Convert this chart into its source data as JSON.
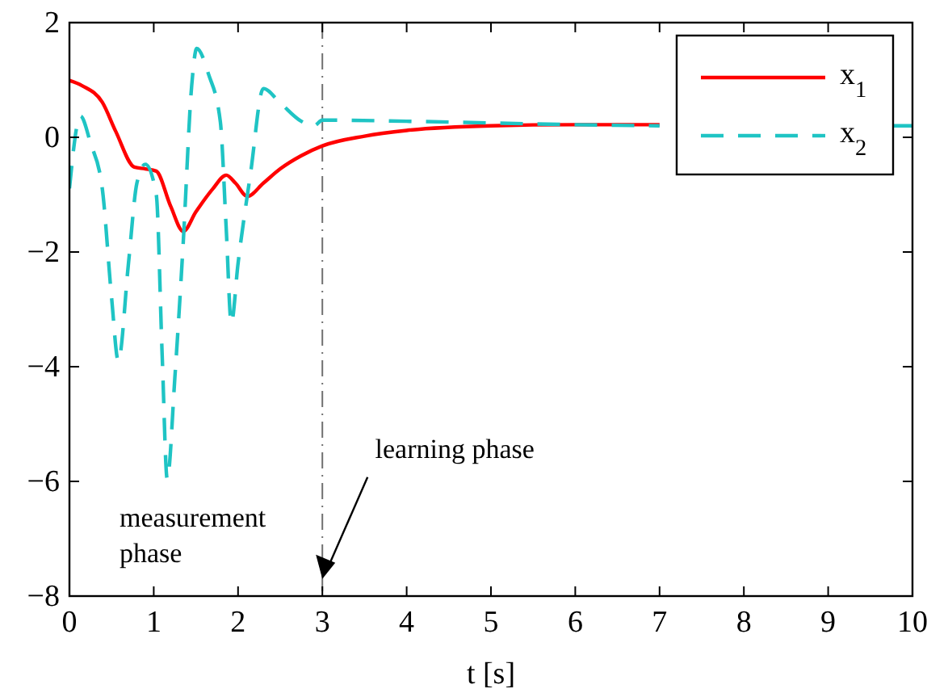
{
  "chart_data": {
    "type": "line",
    "xlabel": "t [s]",
    "xlim": [
      0,
      10
    ],
    "ylim": [
      -8,
      2
    ],
    "xticks": [
      0,
      1,
      2,
      3,
      4,
      5,
      6,
      7,
      8,
      9,
      10
    ],
    "yticks": [
      -8,
      -6,
      -4,
      -2,
      0,
      2
    ],
    "grid": false,
    "legend": "top right",
    "series": [
      {
        "name": "x$_{1}$",
        "color": "#ff0000",
        "line_style": "solid",
        "x": [
          0,
          0.15,
          0.39,
          0.55,
          0.77,
          0.9,
          1.03,
          1.2,
          1.35,
          1.5,
          1.7,
          1.86,
          1.97,
          2.11,
          2.3,
          2.5,
          2.75,
          3,
          3.5,
          4,
          5,
          6,
          7
        ],
        "values": [
          0.99,
          0.9,
          0.61,
          0.1,
          -0.52,
          -0.55,
          -0.59,
          -1.2,
          -1.64,
          -1.3,
          -0.9,
          -0.66,
          -0.8,
          -1.03,
          -0.8,
          -0.55,
          -0.32,
          -0.15,
          0.02,
          0.12,
          0.2,
          0.22,
          0.22
        ]
      },
      {
        "name": "x$_{2}$",
        "color": "#1fc4c4",
        "line_style": "dashed",
        "x": [
          0,
          0.13,
          0.25,
          0.39,
          0.5,
          0.58,
          0.7,
          0.8,
          0.9,
          1.03,
          1.1,
          1.16,
          1.25,
          1.35,
          1.45,
          1.51,
          1.65,
          1.79,
          1.86,
          1.92,
          2.0,
          2.15,
          2.3,
          2.5,
          2.75,
          2.9,
          3,
          4,
          5,
          6,
          7,
          8,
          9.75,
          10
        ],
        "values": [
          -0.89,
          0.37,
          -0.1,
          -0.9,
          -2.8,
          -3.9,
          -2.2,
          -0.8,
          -0.47,
          -1.0,
          -3.8,
          -5.96,
          -4.2,
          -1.83,
          0.9,
          1.55,
          1.1,
          0.27,
          -1.6,
          -3.24,
          -2.2,
          -0.61,
          0.85,
          0.6,
          0.28,
          0.2,
          0.3,
          0.28,
          0.25,
          0.22,
          0.2,
          null,
          0.2,
          0.2
        ]
      }
    ],
    "ref_lines": [
      {
        "axis": "x",
        "value": 3,
        "color": "#707070",
        "line_style": "dashdot"
      }
    ],
    "annotations": [
      {
        "text": "learning phase",
        "x": 3,
        "y": -7.7
      },
      "measurement\nphase"
    ]
  }
}
